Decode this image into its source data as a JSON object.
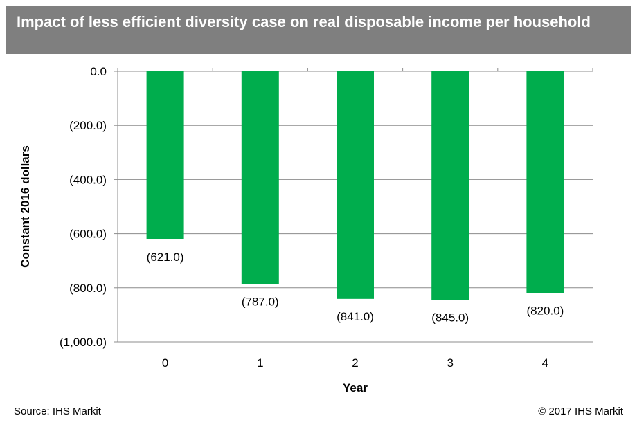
{
  "title": "Impact of less efficient diversity case on real disposable income per household",
  "source": "Source: IHS Markit",
  "copyright": "© 2017 IHS Markit",
  "colors": {
    "bar": "#00ad4d",
    "header": "#7f7f7f",
    "grid": "#8c8c8c"
  },
  "chart_data": {
    "type": "bar",
    "categories": [
      "0",
      "1",
      "2",
      "3",
      "4"
    ],
    "values": [
      -621.0,
      -787.0,
      -841.0,
      -845.0,
      -820.0
    ],
    "data_labels": [
      "(621.0)",
      "(787.0)",
      "(841.0)",
      "(845.0)",
      "(820.0)"
    ],
    "xlabel": "Year",
    "ylabel": "Constant 2016 dollars",
    "ylim": [
      -1000,
      0
    ],
    "yticks": [
      0,
      -200,
      -400,
      -600,
      -800,
      -1000
    ],
    "ytick_labels": [
      "0.0",
      "(200.0)",
      "(400.0)",
      "(600.0)",
      "(800.0)",
      "(1,000.0)"
    ],
    "grid": true,
    "legend": "none"
  }
}
